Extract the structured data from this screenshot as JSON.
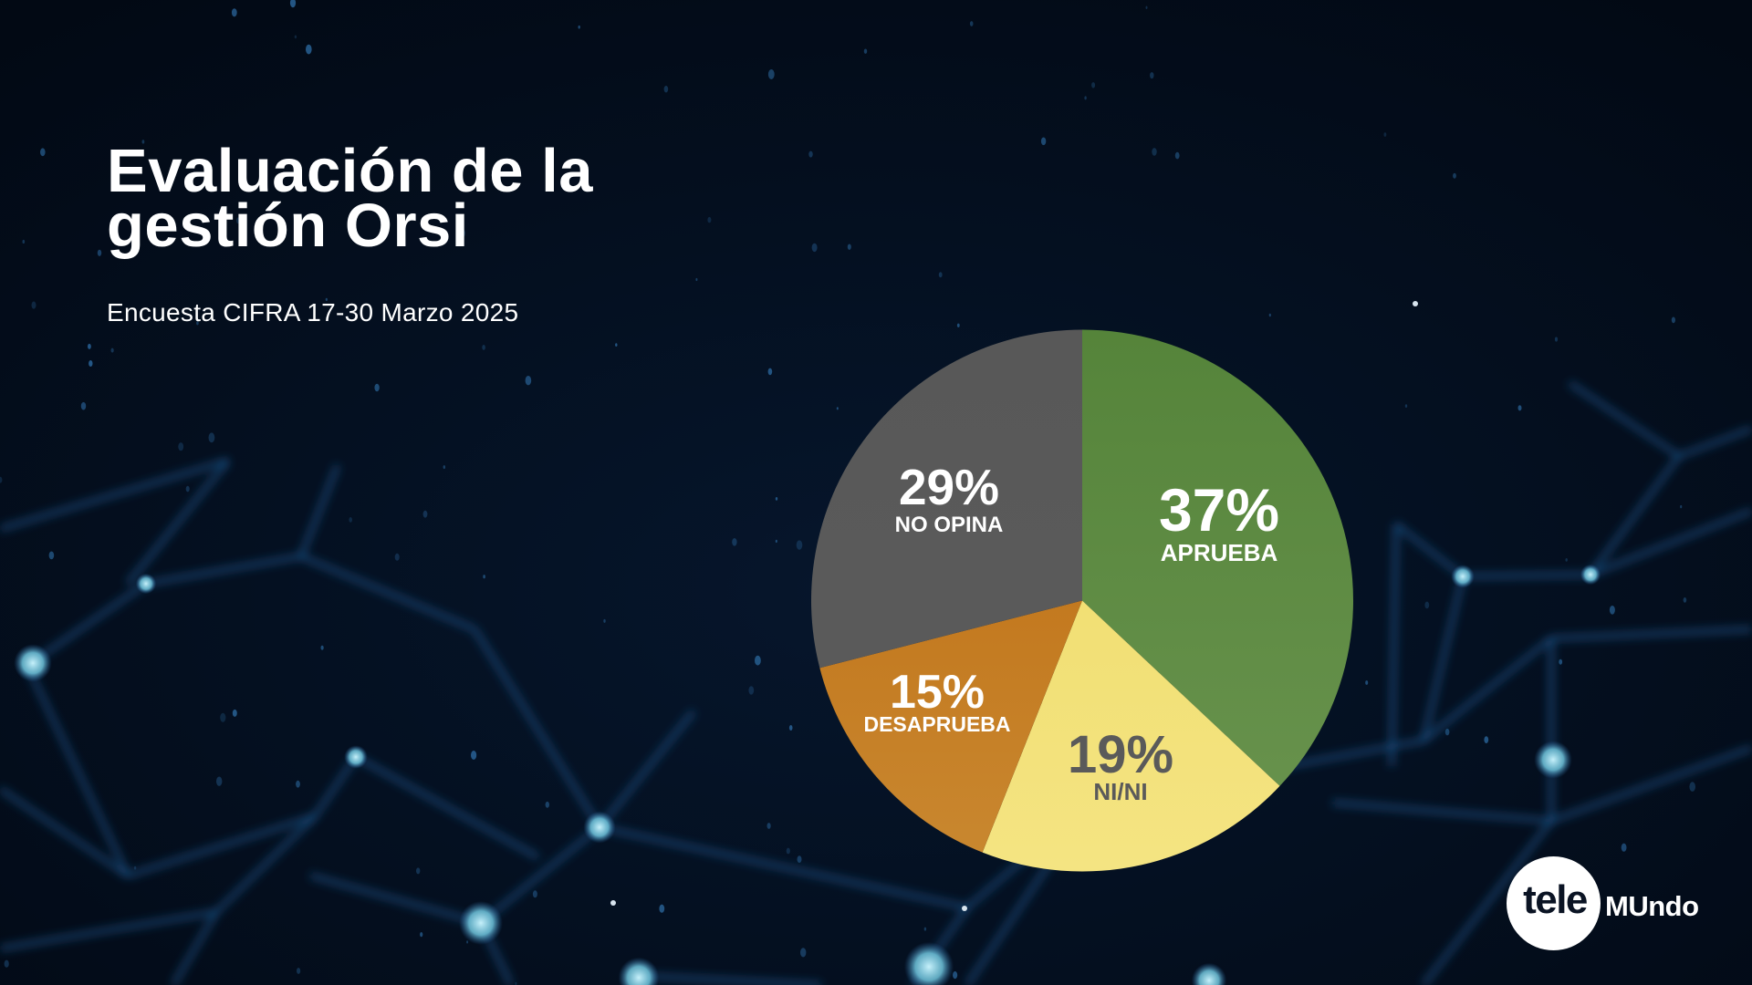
{
  "header": {
    "title_lines": [
      "Evaluación de la",
      "gestión Orsi"
    ],
    "subtitle": "Encuesta CIFRA 17-30 Marzo 2025"
  },
  "chart_data": {
    "type": "pie",
    "title": "Evaluación de la gestión Orsi",
    "subtitle": "Encuesta CIFRA 17-30 Marzo 2025",
    "start": "12 o'clock",
    "direction": "clockwise",
    "unit": "%",
    "slices": [
      {
        "label": "APRUEBA",
        "value": 37,
        "display": "37%",
        "color_top": "#55843a",
        "color_bottom": "#6a944f",
        "text_color": "#ffffff"
      },
      {
        "label": "NI/NI",
        "value": 19,
        "display": "19%",
        "color_top": "#efdb66",
        "color_bottom": "#f4e482",
        "text_color": "#5a5a5a"
      },
      {
        "label": "DESAPRUEBA",
        "value": 15,
        "display": "15%",
        "color_top": "#bd6a0e",
        "color_bottom": "#c98830",
        "text_color": "#ffffff"
      },
      {
        "label": "NO OPINA",
        "value": 29,
        "display": "29%",
        "color_top": "#585858",
        "color_bottom": "#5c5c5c",
        "text_color": "#ffffff"
      }
    ]
  },
  "logo": {
    "part1": "tele",
    "part2": "MUndo"
  },
  "colors": {
    "background": "#020a18",
    "network": "#2a6aa8",
    "node_glow": "#8fd6ea"
  }
}
